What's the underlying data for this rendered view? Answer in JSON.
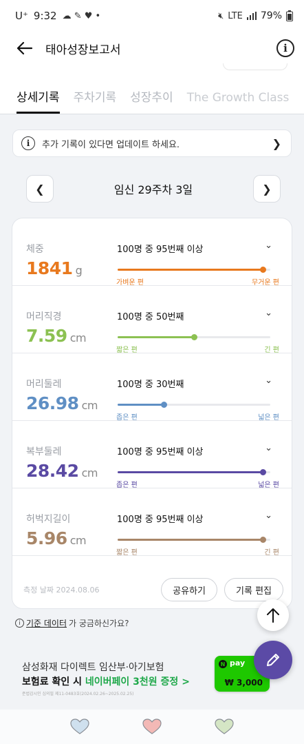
{
  "status_bar": {
    "carrier": "U⁺",
    "time": "9:32",
    "battery": "79%",
    "network": "LTE"
  },
  "app_bar": {
    "title": "태아성장보고서"
  },
  "tabs": [
    {
      "label": "상세기록",
      "active": true
    },
    {
      "label": "주차기록",
      "active": false
    },
    {
      "label": "성장추이",
      "active": false
    },
    {
      "label": "The Growth Class",
      "active": false
    }
  ],
  "notice": {
    "text": "추가 기록이 있다면 업데이트 하세요."
  },
  "week_nav": {
    "label": "임신 29주차 3일"
  },
  "metrics": [
    {
      "label": "체중",
      "value": "1841",
      "unit": "g",
      "rank": "100명 중 95번째 이상",
      "low_label": "가벼운 편",
      "high_label": "무거운 편",
      "color": "#e8791e",
      "percentile": 0.95
    },
    {
      "label": "머리직경",
      "value": "7.59",
      "unit": "cm",
      "rank": "100명 중 50번째",
      "low_label": "짧은 편",
      "high_label": "긴 편",
      "color": "#8cc152",
      "percentile": 0.5
    },
    {
      "label": "머리둘레",
      "value": "26.98",
      "unit": "cm",
      "rank": "100명 중 30번째",
      "low_label": "좁은 편",
      "high_label": "넓은 편",
      "color": "#5f8fc4",
      "percentile": 0.3
    },
    {
      "label": "복부둘레",
      "value": "28.42",
      "unit": "cm",
      "rank": "100명 중 95번째 이상",
      "low_label": "좁은 편",
      "high_label": "넓은 편",
      "color": "#5a4aa3",
      "percentile": 0.95
    },
    {
      "label": "허벅지길이",
      "value": "5.96",
      "unit": "cm",
      "rank": "100명 중 95번째 이상",
      "low_label": "짧은 편",
      "high_label": "긴 편",
      "color": "#a88668",
      "percentile": 0.95
    }
  ],
  "card_footer": {
    "measured": "측정 날짜 2024.08.06",
    "share_label": "공유하기",
    "edit_label": "기록 편집"
  },
  "standard_question": {
    "link": "기준 데이터",
    "suffix": "가 궁금하신가요?"
  },
  "ad": {
    "line1": "삼성화재 다이렉트 임산부·아기보험",
    "line2_prefix": "보험료 확인 시 ",
    "line2_highlight": "네이버페이 3천원 증정 >",
    "fine_print": "준법감시인 심의필 제11-0483호(2024.02.26~2025.02.25)",
    "badge_pay": "pay",
    "badge_amount": "₩ 3,000"
  },
  "bottom_hearts": [
    {
      "name": "blue",
      "color": "#cfe0ee"
    },
    {
      "name": "pink",
      "color": "#f3b9b6"
    },
    {
      "name": "green",
      "color": "#d5e6c5"
    }
  ]
}
